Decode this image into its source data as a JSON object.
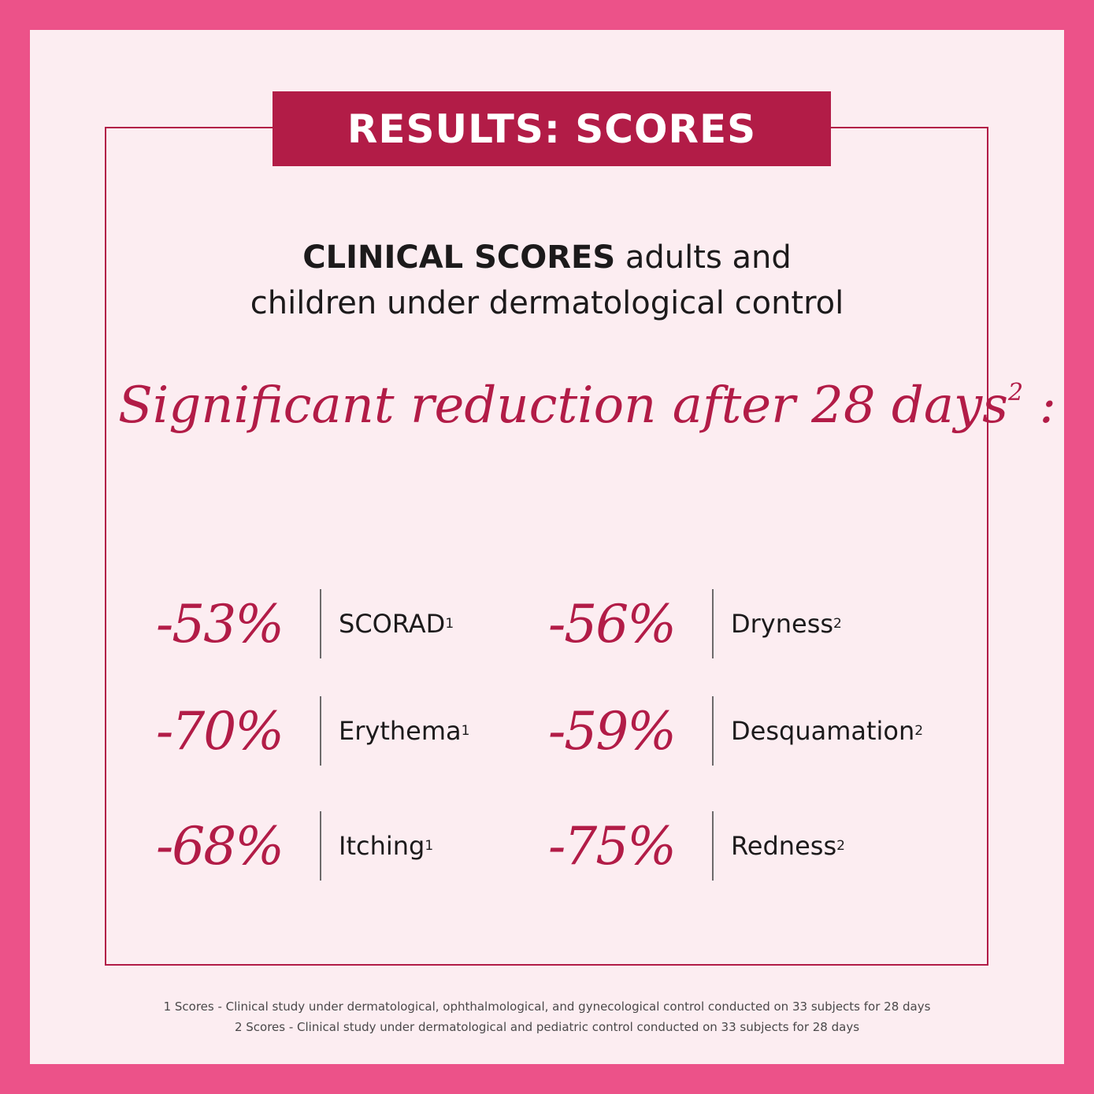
{
  "badge": {
    "title": "RESULTS: SCORES"
  },
  "subtitle": {
    "bold": "CLINICAL SCORES",
    "line1_rest": " adults and",
    "line2": "children under dermatological control"
  },
  "headline": {
    "text": "Significant reduction after 28 days",
    "superscript": "2",
    "suffix": " :"
  },
  "stats": [
    {
      "value": "-53%",
      "label": "SCORAD",
      "ref": "1"
    },
    {
      "value": "-56%",
      "label": "Dryness",
      "ref": "2"
    },
    {
      "value": "-70%",
      "label": "Erythema",
      "ref": "1"
    },
    {
      "value": "-59%",
      "label": "Desquamation",
      "ref": "2"
    },
    {
      "value": "-68%",
      "label": "Itching",
      "ref": "1"
    },
    {
      "value": "-75%",
      "label": "Redness",
      "ref": "2"
    }
  ],
  "footnotes": [
    "1 Scores - Clinical study under dermatological, ophthalmological, and gynecological control conducted on 33 subjects for 28 days",
    "2 Scores - Clinical study under dermatological and pediatric control conducted on 33 subjects for 28 days"
  ],
  "colors": {
    "outer_border": "#ec5289",
    "panel_background": "#fcedf1",
    "accent": "#b21c47",
    "text": "#1c1a1b"
  }
}
